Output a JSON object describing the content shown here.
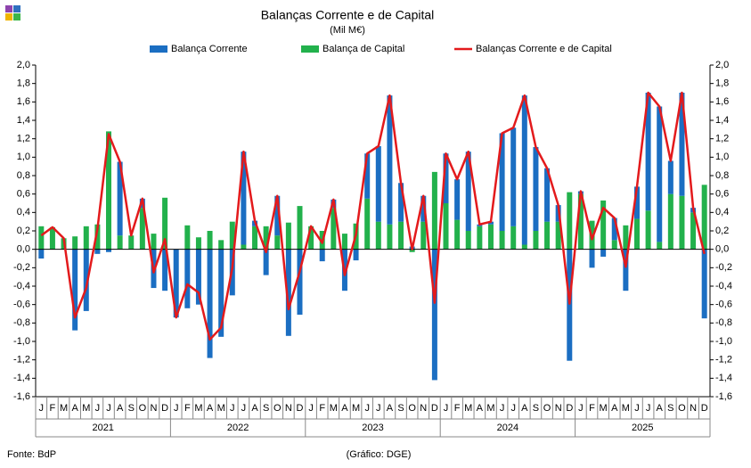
{
  "chart_data": {
    "type": "bar",
    "title": "Balanças Corrente e de Capital",
    "subtitle": "(Mil M€)",
    "source": "Fonte: BdP",
    "credit": "(Gráfico: DGE)",
    "categories": [
      "J",
      "F",
      "M",
      "A",
      "M",
      "J",
      "J",
      "A",
      "S",
      "O",
      "N",
      "D",
      "J",
      "F",
      "M",
      "A",
      "M",
      "J",
      "J",
      "A",
      "S",
      "O",
      "N",
      "D",
      "J",
      "F",
      "M",
      "A",
      "M",
      "J",
      "J",
      "A",
      "S",
      "O",
      "N",
      "D",
      "J",
      "F",
      "M",
      "A",
      "M",
      "J",
      "J",
      "A",
      "S",
      "O",
      "N",
      "D",
      "J",
      "F",
      "M",
      "A",
      "M",
      "J",
      "J",
      "A",
      "S",
      "O",
      "N",
      "D"
    ],
    "years": [
      "2021",
      "2022",
      "2023",
      "2024",
      "2025"
    ],
    "series": [
      {
        "name": "Balança de Capital",
        "type": "bar",
        "color": "#22b14c",
        "values": [
          0.25,
          0.24,
          0.12,
          0.14,
          0.25,
          0.27,
          1.28,
          0.15,
          0.15,
          0.45,
          0.17,
          0.56,
          0,
          0.26,
          0.13,
          0.2,
          0.1,
          0.3,
          0.05,
          0.25,
          0.25,
          0.15,
          0.29,
          0.47,
          0.25,
          0.2,
          0.45,
          0.17,
          0.28,
          0.55,
          0.3,
          0.27,
          0.3,
          -0.03,
          0.3,
          0.84,
          0.5,
          0.32,
          0.2,
          0.25,
          0.27,
          0.2,
          0.25,
          0.05,
          0.2,
          0.3,
          0.3,
          0.62,
          0.6,
          0.31,
          0.53,
          0.1,
          0.26,
          0.33,
          0.42,
          0.08,
          0.6,
          0.58,
          0.4,
          0.7
        ]
      },
      {
        "name": "Balança Corrente",
        "type": "bar",
        "color": "#1b6ec2",
        "values": [
          -0.1,
          0,
          0,
          -0.88,
          -0.67,
          -0.05,
          -0.03,
          0.8,
          0,
          0.1,
          -0.42,
          -0.45,
          -0.74,
          -0.64,
          -0.6,
          -1.18,
          -0.95,
          -0.5,
          1.01,
          0.06,
          -0.28,
          0.43,
          -0.94,
          -0.71,
          0,
          -0.13,
          0.09,
          -0.45,
          -0.12,
          0.49,
          0.82,
          1.4,
          0.42,
          0.03,
          0.28,
          -1.42,
          0.54,
          0.44,
          0.86,
          0.02,
          0.03,
          1.06,
          1.07,
          1.62,
          0.91,
          0.58,
          0.18,
          -1.21,
          0.03,
          -0.2,
          -0.08,
          0.24,
          -0.45,
          0.35,
          1.28,
          1.47,
          0.36,
          1.12,
          0.05,
          -0.75
        ]
      },
      {
        "name": "Balanças Corrente e de Capital",
        "type": "line",
        "color": "#e31a1c",
        "values": [
          0.15,
          0.24,
          0.12,
          -0.74,
          -0.42,
          0.22,
          1.25,
          0.95,
          0.15,
          0.55,
          -0.25,
          0.11,
          -0.74,
          -0.38,
          -0.47,
          -0.98,
          -0.85,
          -0.2,
          1.06,
          0.31,
          -0.03,
          0.58,
          -0.65,
          -0.24,
          0.25,
          0.07,
          0.54,
          -0.28,
          0.16,
          1.04,
          1.12,
          1.67,
          0.72,
          0,
          0.58,
          -0.58,
          1.04,
          0.76,
          1.06,
          0.27,
          0.3,
          1.26,
          1.32,
          1.67,
          1.11,
          0.88,
          0.48,
          -0.59,
          0.63,
          0.11,
          0.45,
          0.34,
          -0.19,
          0.68,
          1.7,
          1.55,
          0.96,
          1.7,
          0.45,
          -0.05
        ]
      }
    ],
    "ylim": [
      -1.6,
      2.0
    ],
    "yticks": [
      {
        "value": -1.6,
        "label": "-1,6"
      },
      {
        "value": -1.4,
        "label": "-1,4"
      },
      {
        "value": -1.2,
        "label": "-1,2"
      },
      {
        "value": -1.0,
        "label": "-1,0"
      },
      {
        "value": -0.8,
        "label": "-0,8"
      },
      {
        "value": -0.6,
        "label": "-0,6"
      },
      {
        "value": -0.4,
        "label": "-0,4"
      },
      {
        "value": -0.2,
        "label": "-0,2"
      },
      {
        "value": 0,
        "label": "0,0"
      },
      {
        "value": 0.2,
        "label": "0,2"
      },
      {
        "value": 0.4,
        "label": "0,4"
      },
      {
        "value": 0.6,
        "label": "0,6"
      },
      {
        "value": 0.8,
        "label": "0,8"
      },
      {
        "value": 1.0,
        "label": "1,0"
      },
      {
        "value": 1.2,
        "label": "1,2"
      },
      {
        "value": 1.4,
        "label": "1,4"
      },
      {
        "value": 1.6,
        "label": "1,6"
      },
      {
        "value": 1.8,
        "label": "1,8"
      },
      {
        "value": 2.0,
        "label": "2,0"
      }
    ],
    "y2lim": [
      -1.6,
      2.0
    ],
    "y2ticks": [
      {
        "value": -1.6,
        "label": "-1,6"
      },
      {
        "value": -1.4,
        "label": "-1,4"
      },
      {
        "value": -1.2,
        "label": "-1,2"
      },
      {
        "value": -1.0,
        "label": "-1,0"
      },
      {
        "value": -0.8,
        "label": "-0,8"
      },
      {
        "value": -0.6,
        "label": "-0,6"
      },
      {
        "value": -0.4,
        "label": "-0,4"
      },
      {
        "value": -0.2,
        "label": "-0,2"
      },
      {
        "value": 0,
        "label": "0,0"
      },
      {
        "value": 0.2,
        "label": "0,2"
      },
      {
        "value": 0.4,
        "label": "0,4"
      },
      {
        "value": 0.6,
        "label": "0,6"
      },
      {
        "value": 0.8,
        "label": "0,8"
      },
      {
        "value": 1.0,
        "label": "1,0"
      },
      {
        "value": 1.2,
        "label": "1,2"
      },
      {
        "value": 1.4,
        "label": "1,4"
      },
      {
        "value": 1.6,
        "label": "1,6"
      },
      {
        "value": 1.8,
        "label": "1,8"
      },
      {
        "value": 2.0,
        "label": "2,0"
      }
    ],
    "grid": false,
    "legend": "top"
  }
}
